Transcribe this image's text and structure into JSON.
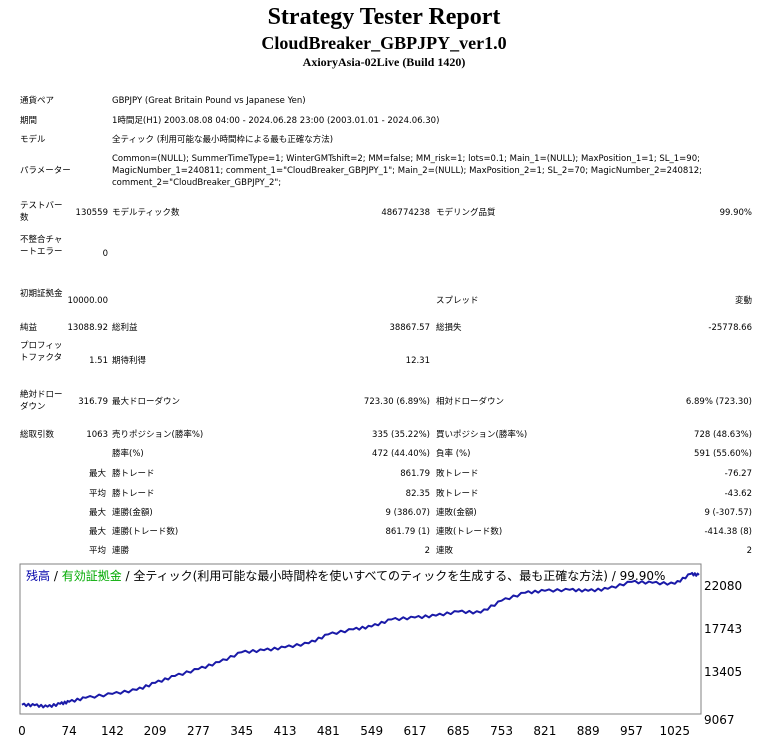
{
  "header": {
    "title": "Strategy Tester Report",
    "ea_name": "CloudBreaker_GBPJPY_ver1.0",
    "server": "AxioryAsia-02Live (Build 1420)"
  },
  "info": {
    "symbol_label": "通貨ペア",
    "symbol_value": "GBPJPY (Great Britain Pound vs Japanese Yen)",
    "period_label": "期間",
    "period_value": "1時間足(H1) 2003.08.08 04:00 - 2024.06.28 23:00 (2003.01.01 - 2024.06.30)",
    "model_label": "モデル",
    "model_value": "全ティック (利用可能な最小時間枠による最も正確な方法)",
    "params_label": "パラメーター",
    "params_value": "Common=(NULL); SummerTimeType=1; WinterGMTshift=2; MM=false; MM_risk=1; lots=0.1; Main_1=(NULL); MaxPosition_1=1; SL_1=90; MagicNumber_1=240811; comment_1=\"CloudBreaker_GBPJPY_1\"; Main_2=(NULL); MaxPosition_2=1; SL_2=70; MagicNumber_2=240812; comment_2=\"CloudBreaker_GBPJPY_2\";"
  },
  "stats": {
    "bars_label": "テストバー数",
    "bars_value": "130559",
    "ticks_label": "モデルティック数",
    "ticks_value": "486774238",
    "quality_label": "モデリング品質",
    "quality_value": "99.90%",
    "mismatch_label": "不整合チャートエラー",
    "mismatch_value": "0",
    "deposit_label": "初期証拠金",
    "deposit_value": "10000.00",
    "spread_label": "スプレッド",
    "spread_value": "変動",
    "net_label": "純益",
    "net_value": "13088.92",
    "gross_profit_label": "総利益",
    "gross_profit_value": "38867.57",
    "gross_loss_label": "総損失",
    "gross_loss_value": "-25778.66",
    "pf_label": "プロフィットファクタ",
    "pf_value": "1.51",
    "expected_label": "期待利得",
    "expected_value": "12.31",
    "abs_dd_label": "絶対ドローダウン",
    "abs_dd_value": "316.79",
    "max_dd_label": "最大ドローダウン",
    "max_dd_value": "723.30 (6.89%)",
    "rel_dd_label": "相対ドローダウン",
    "rel_dd_value": "6.89% (723.30)",
    "total_trades_label": "総取引数",
    "total_trades_value": "1063",
    "short_label": "売りポジション(勝率%)",
    "short_value": "335 (35.22%)",
    "long_label": "買いポジション(勝率%)",
    "long_value": "728 (48.63%)",
    "win_pct_label": "勝率(%)",
    "win_pct_value": "472 (44.40%)",
    "loss_pct_label": "負率 (%)",
    "loss_pct_value": "591 (55.60%)",
    "max_label": "最大",
    "avg_label": "平均",
    "win_trade_label": "勝トレード",
    "loss_trade_label": "敗トレード",
    "largest_win_value": "861.79",
    "largest_loss_value": "-76.27",
    "avg_win_value": "82.35",
    "avg_loss_value": "-43.62",
    "consec_wins_amount_label": "連勝(金額)",
    "consec_wins_amount_value": "9 (386.07)",
    "consec_losses_amount_label": "連敗(金額)",
    "consec_losses_amount_value": "9 (-307.57)",
    "consec_wins_trades_label": "連勝(トレード数)",
    "consec_wins_trades_value": "861.79 (1)",
    "consec_losses_trades_label": "連敗(トレード数)",
    "consec_losses_trades_value": "-414.38 (8)",
    "avg_wins_label": "連勝",
    "avg_wins_value": "2",
    "avg_losses_label": "連敗",
    "avg_losses_value": "2"
  },
  "chart_data": {
    "type": "line",
    "legend_balance": "残高",
    "legend_sep": " / ",
    "legend_equity": "有効証拠金",
    "legend_rest": " / 全ティック(利用可能な最小時間枠を使いすべてのティックを生成する、最も正確な方法) / 99.90%",
    "colors": {
      "balance": "#0000aa",
      "equity": "#00aa00",
      "line": "#1a1aa8"
    },
    "x_ticks": [
      0,
      74,
      142,
      209,
      277,
      345,
      413,
      481,
      549,
      617,
      685,
      753,
      821,
      889,
      957,
      1025
    ],
    "y_ticks": [
      9067,
      13405,
      17743,
      22080
    ],
    "xlim": [
      0,
      1063
    ],
    "ylim": [
      9067,
      24000
    ],
    "series": [
      {
        "x": [
          0,
          20,
          40,
          60,
          74,
          100,
          142,
          180,
          209,
          240,
          277,
          310,
          345,
          380,
          413,
          450,
          481,
          520,
          549,
          580,
          617,
          650,
          685,
          720,
          753,
          790,
          821,
          860,
          889,
          920,
          957,
          990,
          1025,
          1050,
          1063
        ],
        "y": [
          10000,
          9950,
          9800,
          10100,
          10300,
          10700,
          11100,
          11500,
          12200,
          12900,
          13600,
          14300,
          15300,
          15500,
          15800,
          16200,
          17100,
          17600,
          17900,
          18600,
          18800,
          19000,
          19400,
          19300,
          20500,
          21300,
          21500,
          21600,
          21500,
          21700,
          22400,
          22300,
          22200,
          23200,
          23100
        ]
      }
    ]
  }
}
